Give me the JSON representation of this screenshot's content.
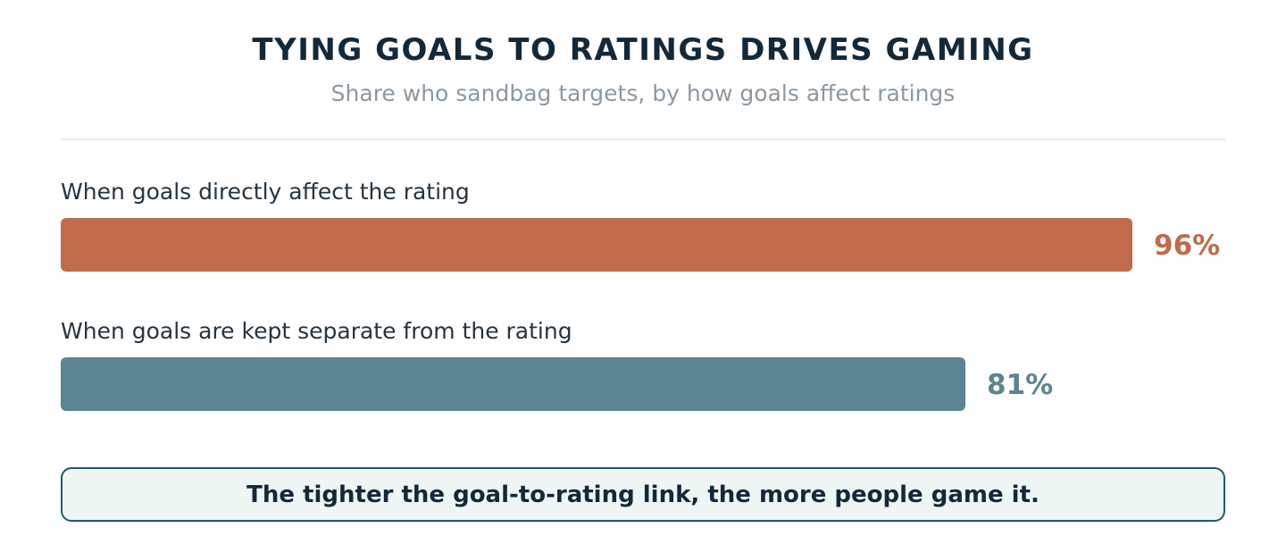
{
  "chart_data": {
    "type": "bar",
    "orientation": "horizontal",
    "title": "TYING GOALS TO RATINGS DRIVES GAMING",
    "subtitle": "Share who sandbag targets, by how goals affect ratings",
    "categories": [
      "When goals directly affect the rating",
      "When goals are kept separate from the rating"
    ],
    "values": [
      96,
      81
    ],
    "value_labels": [
      "96%",
      "81%"
    ],
    "xlim": [
      0,
      100
    ],
    "bar_colors": [
      "#c06b4a",
      "#5c8591"
    ],
    "grid": false,
    "legend": "none"
  },
  "callout": {
    "text": "The tighter the goal-to-rating link, the more people game it."
  }
}
